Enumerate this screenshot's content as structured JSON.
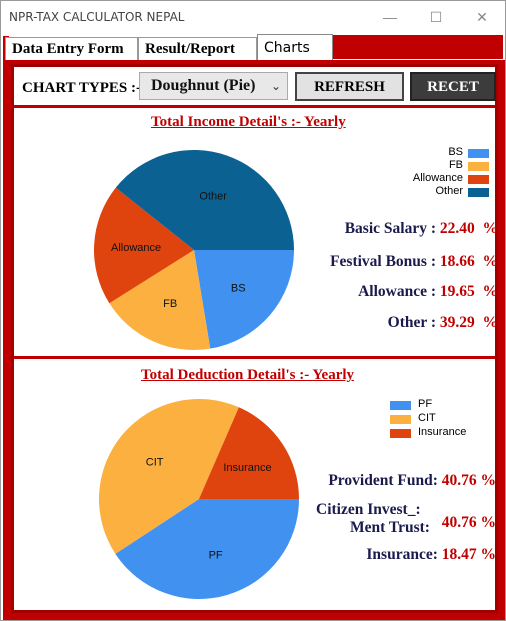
{
  "window": {
    "title": "NPR-TAX CALCULATOR NEPAL"
  },
  "tabs": [
    {
      "label": "Data Entry Form"
    },
    {
      "label": "Result/Report"
    },
    {
      "label": "Charts"
    }
  ],
  "toolbar": {
    "chart_types_label": "CHART TYPES :-",
    "chart_type_value": "Doughnut (Pie)",
    "refresh_label": "REFRESH",
    "recet_label": "RECET"
  },
  "income": {
    "title": "Total Income Detail's :- Yearly",
    "legend": [
      "BS",
      "FB",
      "Allowance",
      "Other"
    ],
    "stats": [
      {
        "label": "Basic Salary :",
        "value": "22.40",
        "unit": "%"
      },
      {
        "label": "Festival Bonus :",
        "value": "18.66",
        "unit": "%"
      },
      {
        "label": "Allowance :",
        "value": "19.65",
        "unit": "%"
      },
      {
        "label": "Other :",
        "value": "39.29",
        "unit": "%"
      }
    ]
  },
  "deduction": {
    "title": "Total Deduction Detail's :- Yearly",
    "legend": [
      "PF",
      "CIT",
      "Insurance"
    ],
    "stats": [
      {
        "label": "Provident Fund:",
        "value": "40.76 %"
      },
      {
        "label": "Citizen Invest_:",
        "label2": "Ment Trust:",
        "value": "40.76 %"
      },
      {
        "label": "Insurance:",
        "value": "18.47 %"
      }
    ]
  },
  "colors": {
    "accent": "#c00000",
    "bs": "#4191f0",
    "fb": "#fbb040",
    "allowance": "#e0440e",
    "other": "#0b6191"
  },
  "chart_data": [
    {
      "type": "pie",
      "categories": [
        "BS",
        "FB",
        "Allowance",
        "Other"
      ],
      "values": [
        22.4,
        18.66,
        19.65,
        39.29
      ],
      "title": "Total Income Detail's :- Yearly",
      "legend": "top-right"
    },
    {
      "type": "pie",
      "categories": [
        "PF",
        "CIT",
        "Insurance"
      ],
      "values": [
        40.76,
        40.76,
        18.47
      ],
      "title": "Total Deduction Detail's :- Yearly",
      "legend": "top-right"
    }
  ]
}
